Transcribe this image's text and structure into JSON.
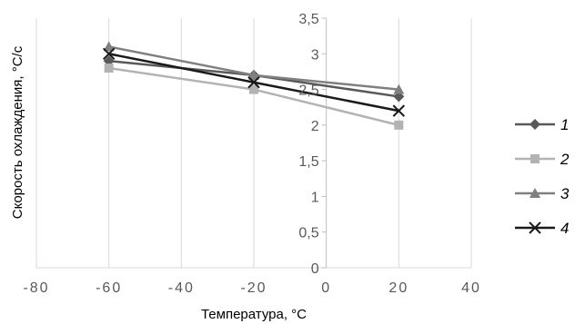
{
  "chart_data": {
    "type": "line",
    "xlabel": "Температура, °C",
    "ylabel": "Скорость охлаждения, °C/с",
    "xlim": [
      -80,
      40
    ],
    "ylim": [
      0,
      3.5
    ],
    "x_ticks": [
      -80,
      -60,
      -40,
      -20,
      0,
      20,
      40
    ],
    "y_ticks": [
      0,
      0.5,
      1,
      1.5,
      2,
      2.5,
      3,
      3.5
    ],
    "x_tick_labels": [
      "-80",
      "-60",
      "-40",
      "-20",
      "0",
      "20",
      "40"
    ],
    "y_tick_labels": [
      "0",
      "0,5",
      "1",
      "1,5",
      "2",
      "2,5",
      "3",
      "3,5"
    ],
    "grid": "vertical",
    "legend_position": "right",
    "x": [
      -60,
      -20,
      20
    ],
    "series": [
      {
        "name": "1",
        "values": [
          2.9,
          2.7,
          2.4
        ],
        "color": "#595959",
        "marker": "diamond"
      },
      {
        "name": "2",
        "values": [
          2.8,
          2.5,
          2.0
        ],
        "color": "#b3b3b3",
        "marker": "square"
      },
      {
        "name": "3",
        "values": [
          3.1,
          2.7,
          2.5
        ],
        "color": "#808080",
        "marker": "triangle"
      },
      {
        "name": "4",
        "values": [
          3.0,
          2.6,
          2.2
        ],
        "color": "#1a1a1a",
        "marker": "x"
      }
    ]
  }
}
